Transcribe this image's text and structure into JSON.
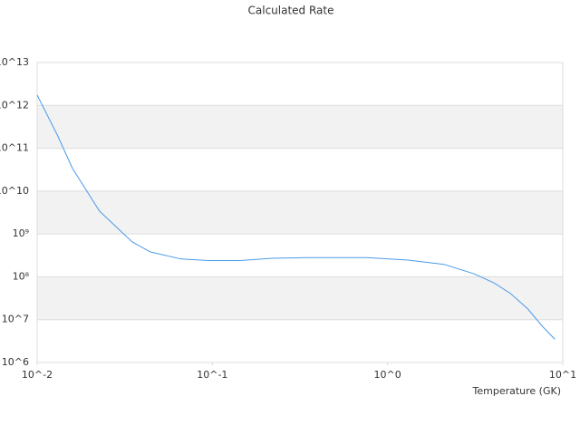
{
  "chart_data": {
    "type": "line",
    "title": "Calculated Rate",
    "x_label": "Temperature (GK)",
    "x": [
      0.01,
      0.0131,
      0.0159,
      0.0227,
      0.0349,
      0.0443,
      0.0664,
      0.095,
      0.144,
      0.219,
      0.352,
      0.764,
      1.31,
      2.1,
      3.12,
      4.05,
      5.02,
      6.3,
      7.62,
      9.0
    ],
    "series": [
      {
        "name": "Calculated Rate",
        "color": "#4a9be8",
        "values": [
          1740000000000.0,
          195000000000.0,
          34000000000.0,
          3400000000.0,
          650000000.0,
          380000000.0,
          260000000.0,
          240000000.0,
          240000000.0,
          270000000.0,
          280000000.0,
          280000000.0,
          245000000.0,
          195000000.0,
          117000000.0,
          72000000.0,
          41000000.0,
          18000000.0,
          7100000.0,
          3500000.0
        ]
      }
    ],
    "xlim": [
      0.01,
      10
    ],
    "ylim": [
      1000000.0,
      10000000000000.0
    ],
    "xscale": "log",
    "yscale": "log",
    "xticks": [
      {
        "value": 0.01,
        "label": "10^-2"
      },
      {
        "value": 0.1,
        "label": "10^-1"
      },
      {
        "value": 1,
        "label": "10^0"
      },
      {
        "value": 10,
        "label": "10^1"
      }
    ],
    "yticks": [
      {
        "value": 1000000.0,
        "label": "10^6"
      },
      {
        "value": 10000000.0,
        "label": "10^7"
      },
      {
        "value": 100000000.0,
        "label": "10⁸"
      },
      {
        "value": 1000000000.0,
        "label": "10⁹"
      },
      {
        "value": 10000000000.0,
        "label": "10^10"
      },
      {
        "value": 100000000000.0,
        "label": "10^11"
      },
      {
        "value": 1000000000000.0,
        "label": "10^12"
      },
      {
        "value": 10000000000000.0,
        "label": "10^13"
      }
    ],
    "grid": true
  }
}
